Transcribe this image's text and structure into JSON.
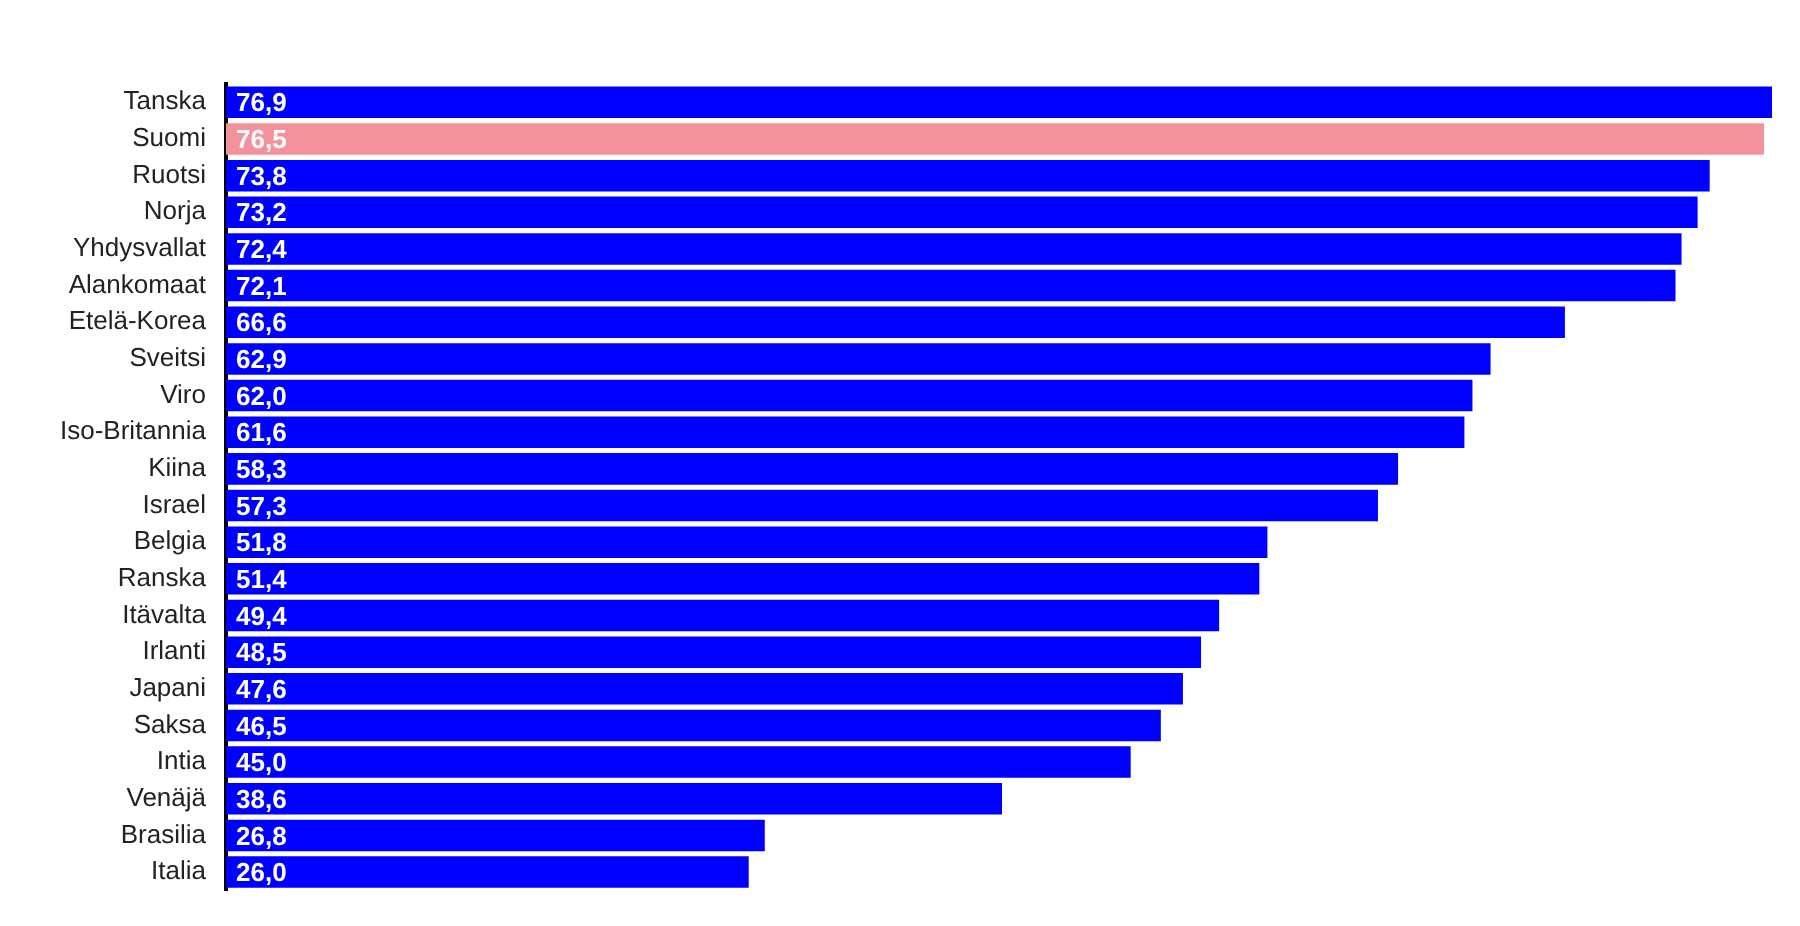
{
  "chart_data": {
    "type": "bar",
    "orientation": "horizontal",
    "legend": false,
    "value_labels": [
      "76,9",
      "76,5",
      "73,8",
      "73,2",
      "72,4",
      "72,1",
      "66,6",
      "62,9",
      "62,0",
      "61,6",
      "58,3",
      "57,3",
      "51,8",
      "51,4",
      "49,4",
      "48,5",
      "47,6",
      "46,5",
      "45,0",
      "38,6",
      "26,8",
      "26,0"
    ],
    "categories": [
      "Tanska",
      "Suomi",
      "Ruotsi",
      "Norja",
      "Yhdysvallat",
      "Alankomaat",
      "Etelä-Korea",
      "Sveitsi",
      "Viro",
      "Iso-Britannia",
      "Kiina",
      "Israel",
      "Belgia",
      "Ranska",
      "Itävalta",
      "Irlanti",
      "Japani",
      "Saksa",
      "Intia",
      "Venäjä",
      "Brasilia",
      "Italia"
    ],
    "values": [
      76.9,
      76.5,
      73.8,
      73.2,
      72.4,
      72.1,
      66.6,
      62.9,
      62.0,
      61.6,
      58.3,
      57.3,
      51.8,
      51.4,
      49.4,
      48.5,
      47.6,
      46.5,
      45.0,
      38.6,
      26.8,
      26.0
    ],
    "colors": [
      "#0000ff",
      "#f4929b",
      "#0000ff",
      "#0000ff",
      "#0000ff",
      "#0000ff",
      "#0000ff",
      "#0000ff",
      "#0000ff",
      "#0000ff",
      "#0000ff",
      "#0000ff",
      "#0000ff",
      "#0000ff",
      "#0000ff",
      "#0000ff",
      "#0000ff",
      "#0000ff",
      "#0000ff",
      "#0000ff",
      "#0000ff",
      "#0000ff"
    ]
  }
}
